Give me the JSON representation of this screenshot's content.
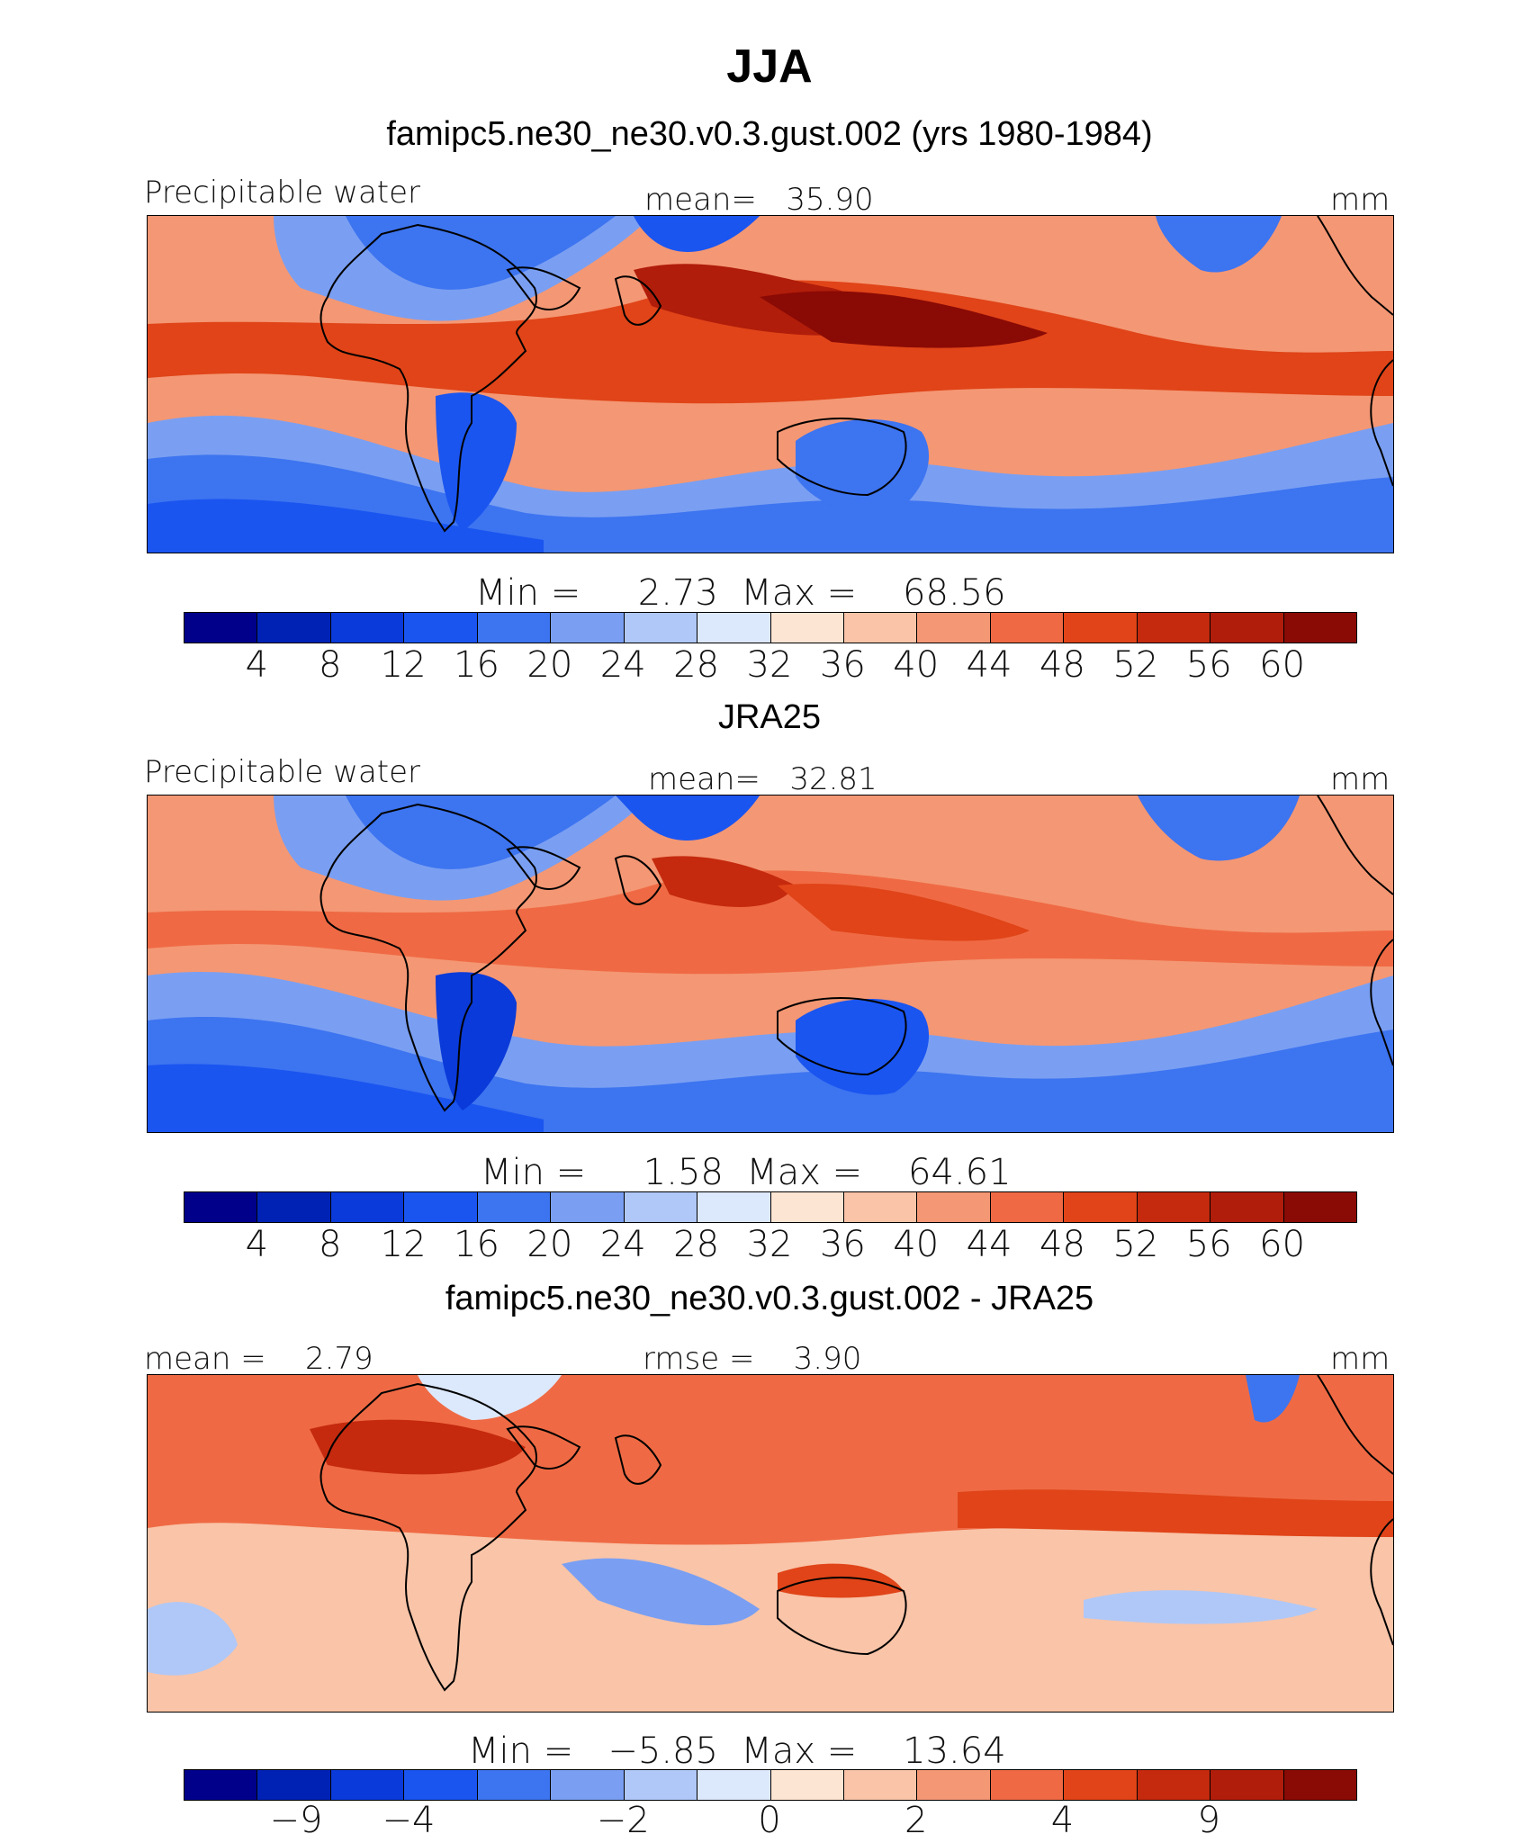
{
  "figure": {
    "season": "JJA",
    "panel1_title": "famipc5.ne30_ne30.v0.3.gust.002 (yrs 1980-1984)",
    "panel2_title": "JRA25",
    "panel3_title": "famipc5.ne30_ne30.v0.3.gust.002 - JRA25"
  },
  "panels": [
    {
      "left_label": "Precipitable water",
      "center_label": "mean=   35.90",
      "right_label": "mm",
      "minmax": "Min =     2.73  Max =    68.56",
      "ticks": [
        "4",
        "8",
        "12",
        "16",
        "20",
        "24",
        "28",
        "32",
        "36",
        "40",
        "44",
        "48",
        "52",
        "56",
        "60"
      ]
    },
    {
      "left_label": "Precipitable water",
      "center_label": "mean=   32.81",
      "right_label": "mm",
      "minmax": "Min =     1.58  Max =    64.61",
      "ticks": [
        "4",
        "8",
        "12",
        "16",
        "20",
        "24",
        "28",
        "32",
        "36",
        "40",
        "44",
        "48",
        "52",
        "56",
        "60"
      ]
    },
    {
      "left_label": "mean =    2.79",
      "center_label": "rmse =    3.90",
      "right_label": "mm",
      "minmax": "Min =   −5.85  Max =    13.64",
      "ticks": [
        "−9",
        "−4",
        "−2",
        "0",
        "2",
        "4",
        "9"
      ]
    }
  ],
  "colors": {
    "scale": [
      "#00008b",
      "#0022b4",
      "#0a3ad9",
      "#1a55f0",
      "#3d74f0",
      "#7a9ff2",
      "#b0c8f7",
      "#dce8fb",
      "#fde5d3",
      "#f9c4a8",
      "#f49774",
      "#ef6a44",
      "#e04418",
      "#c52a0e",
      "#b01d0a",
      "#8a0a05"
    ],
    "map_blue": "#3866e8",
    "map_red": "#e4521e",
    "coast": "#000000"
  },
  "chart_data": {
    "type": "heatmap",
    "variable": "Precipitable water",
    "units": "mm",
    "season": "JJA",
    "colorbar_levels_absolute": [
      4,
      8,
      12,
      16,
      20,
      24,
      28,
      32,
      36,
      40,
      44,
      48,
      52,
      56,
      60
    ],
    "colorbar_levels_difference": [
      -9,
      -4,
      -2,
      0,
      2,
      4,
      9
    ],
    "panels": [
      {
        "name": "famipc5.ne30_ne30.v0.3.gust.002 (yrs 1980-1984)",
        "mean": 35.9,
        "min": 2.73,
        "max": 68.56
      },
      {
        "name": "JRA25",
        "mean": 32.81,
        "min": 1.58,
        "max": 64.61
      },
      {
        "name": "famipc5.ne30_ne30.v0.3.gust.002 - JRA25",
        "mean": 2.79,
        "rmse": 3.9,
        "min": -5.85,
        "max": 13.64
      }
    ]
  }
}
